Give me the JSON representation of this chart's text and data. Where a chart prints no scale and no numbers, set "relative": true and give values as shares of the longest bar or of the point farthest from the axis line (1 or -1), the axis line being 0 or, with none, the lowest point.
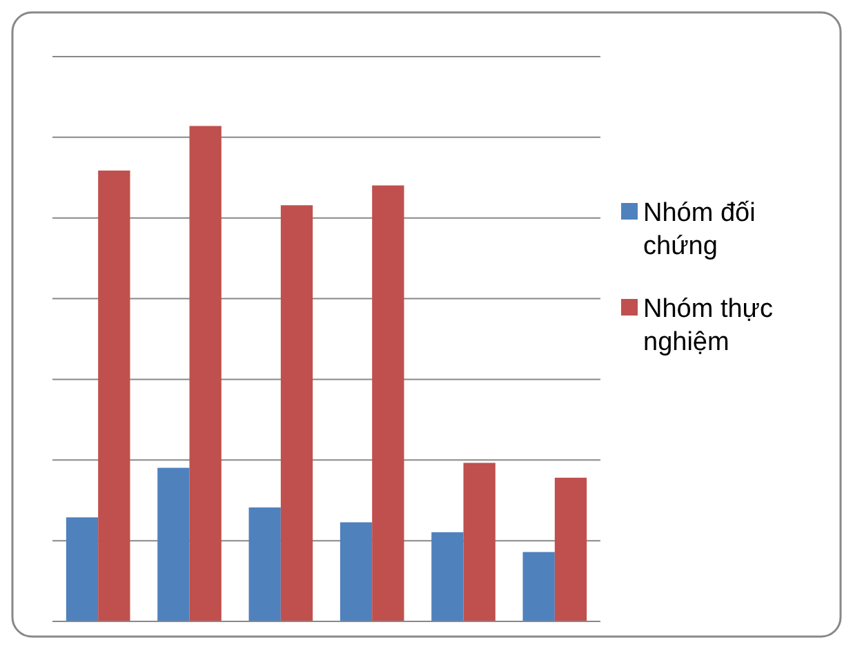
{
  "chart_data": {
    "type": "bar",
    "relative": true,
    "categories": [
      null,
      null,
      null,
      null,
      null,
      null
    ],
    "series": [
      {
        "name": "Nhóm đối chứng",
        "color": "#4f81bd",
        "values": [
          0.21,
          0.31,
          0.23,
          0.2,
          0.18,
          0.14
        ]
      },
      {
        "name": "Nhóm thực nghiệm",
        "color": "#c0504d",
        "values": [
          0.91,
          1,
          0.84,
          0.88,
          0.32,
          0.29
        ]
      }
    ],
    "grid": true,
    "legend": "right"
  }
}
